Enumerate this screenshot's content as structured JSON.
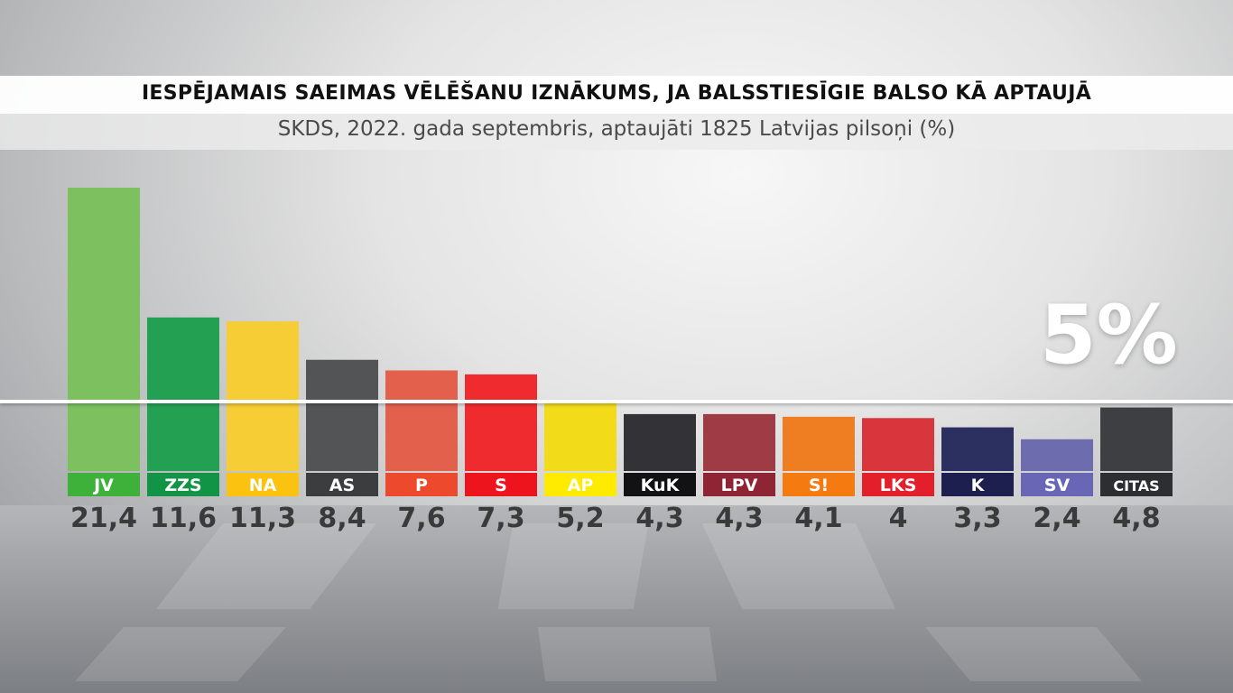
{
  "title": "IESPĒJAMAIS SAEIMAS VĒLĒŠANU IZNĀKUMS, JA BALSSTIESĪGIE BALSO KĀ APTAUJĀ",
  "subtitle": "SKDS, 2022. gada septembris, aptaujāti 1825 Latvijas pilsoņi (%)",
  "threshold_label": "5%",
  "colors": {
    "threshold_line": "#ffffff",
    "value_text": "#3a3a3a",
    "label_text": "#ffffff"
  },
  "chart_data": {
    "type": "bar",
    "title": "IESPĒJAMAIS SAEIMAS VĒLĒŠANU IZNĀKUMS, JA BALSSTIESĪGIE BALSO KĀ APTAUJĀ",
    "subtitle": "SKDS, 2022. gada septembris, aptaujāti 1825 Latvijas pilsoņi (%)",
    "categories": [
      "JV",
      "ZZS",
      "NA",
      "AS",
      "P",
      "S",
      "AP",
      "KuK",
      "LPV",
      "S!",
      "LKS",
      "K",
      "SV",
      "CITAS"
    ],
    "values": [
      21.4,
      11.6,
      11.3,
      8.4,
      7.6,
      7.3,
      5.2,
      4.3,
      4.3,
      4.1,
      4,
      3.3,
      2.4,
      4.8
    ],
    "value_labels": [
      "21,4",
      "11,6",
      "11,3",
      "8,4",
      "7,6",
      "7,3",
      "5,2",
      "4,3",
      "4,3",
      "4,1",
      "4",
      "3,3",
      "2,4",
      "4,8"
    ],
    "bar_colors": [
      "#7cc05f",
      "#24a052",
      "#f7cd35",
      "#535456",
      "#e3604c",
      "#f02b2f",
      "#f2dc1a",
      "#333337",
      "#9e3b45",
      "#ef7d22",
      "#d8353d",
      "#2c3060",
      "#6c6cae",
      "#3d3f43"
    ],
    "label_colors": [
      "#3eb13a",
      "#129446",
      "#fbc20f",
      "#3c3d3f",
      "#ed4a2d",
      "#ee141d",
      "#ffeb00",
      "#121214",
      "#8f2434",
      "#f57b11",
      "#e31f2b",
      "#1d1f4e",
      "#6866b5",
      "#2c2e31"
    ],
    "threshold": 5,
    "ylim": [
      0,
      21.4
    ],
    "xlabel": "",
    "ylabel": "",
    "grid": false,
    "legend": "none"
  }
}
